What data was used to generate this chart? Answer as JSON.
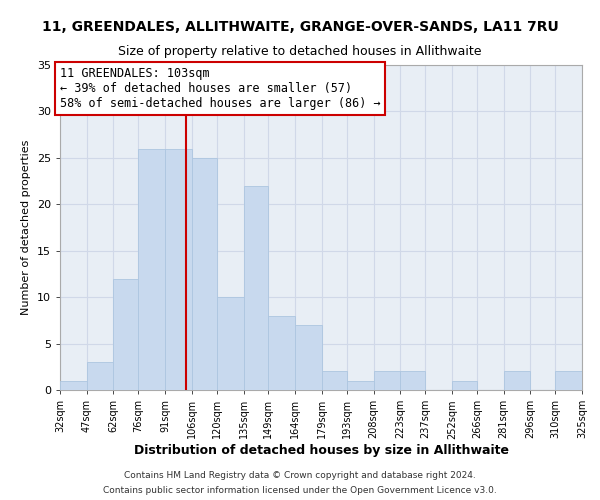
{
  "title": "11, GREENDALES, ALLITHWAITE, GRANGE-OVER-SANDS, LA11 7RU",
  "subtitle": "Size of property relative to detached houses in Allithwaite",
  "xlabel": "Distribution of detached houses by size in Allithwaite",
  "ylabel": "Number of detached properties",
  "bin_edges": [
    32,
    47,
    62,
    76,
    91,
    106,
    120,
    135,
    149,
    164,
    179,
    193,
    208,
    223,
    237,
    252,
    266,
    281,
    296,
    310,
    325
  ],
  "bin_labels": [
    "32sqm",
    "47sqm",
    "62sqm",
    "76sqm",
    "91sqm",
    "106sqm",
    "120sqm",
    "135sqm",
    "149sqm",
    "164sqm",
    "179sqm",
    "193sqm",
    "208sqm",
    "223sqm",
    "237sqm",
    "252sqm",
    "266sqm",
    "281sqm",
    "296sqm",
    "310sqm",
    "325sqm"
  ],
  "counts": [
    1,
    3,
    12,
    26,
    26,
    25,
    10,
    22,
    8,
    7,
    2,
    1,
    2,
    2,
    0,
    1,
    0,
    2,
    0,
    2
  ],
  "bar_color": "#c8d9ee",
  "bar_edge_color": "#adc6e0",
  "grid_color": "#d0d8e8",
  "property_line_x": 103,
  "property_line_color": "#cc0000",
  "ylim": [
    0,
    35
  ],
  "yticks": [
    0,
    5,
    10,
    15,
    20,
    25,
    30,
    35
  ],
  "annotation_text": "11 GREENDALES: 103sqm\n← 39% of detached houses are smaller (57)\n58% of semi-detached houses are larger (86) →",
  "annotation_boxcolor": "#ffffff",
  "annotation_bordercolor": "#cc0000",
  "footnote1": "Contains HM Land Registry data © Crown copyright and database right 2024.",
  "footnote2": "Contains public sector information licensed under the Open Government Licence v3.0.",
  "background_color": "#ffffff",
  "plot_bg_color": "#e8eef5",
  "title_fontsize": 10,
  "subtitle_fontsize": 9
}
